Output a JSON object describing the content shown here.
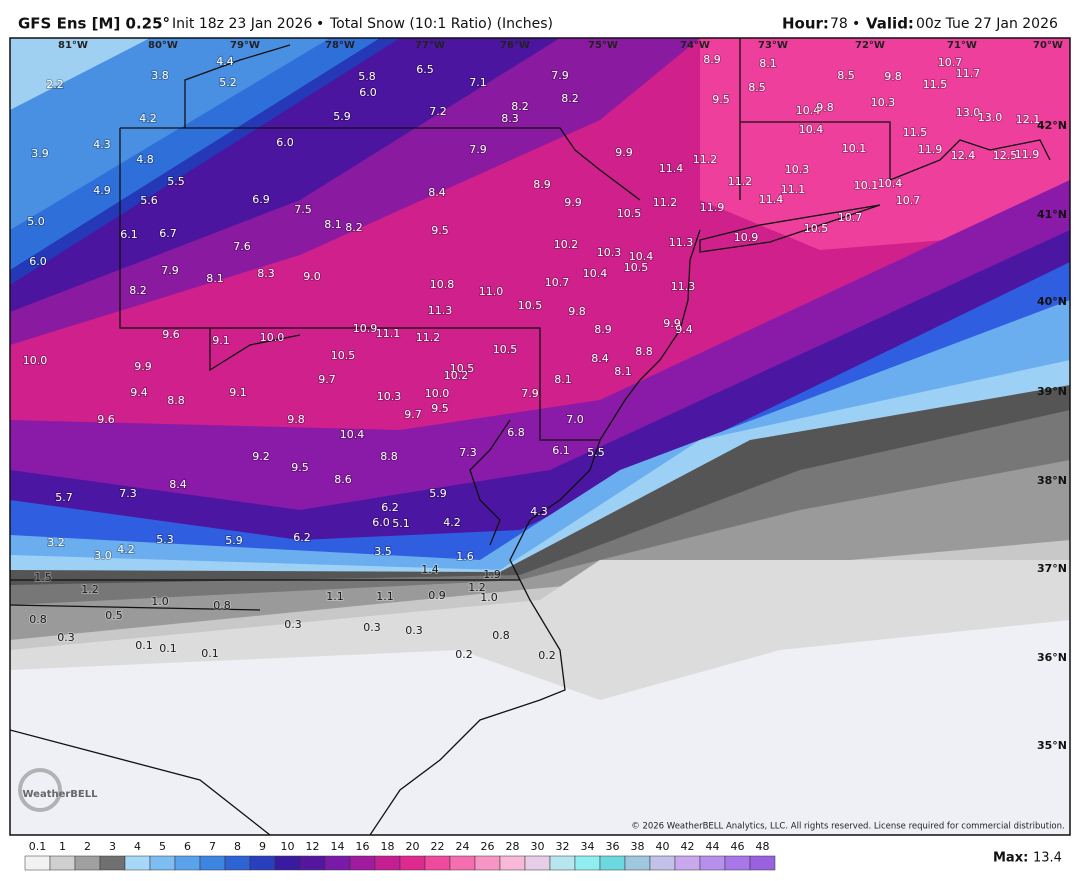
{
  "header": {
    "model": "GFS Ens [M] 0.25°",
    "init": "Init 18z 23 Jan 2026",
    "separator": "•",
    "product": "Total Snow (10:1 Ratio) (Inches)",
    "hour_label": "Hour:",
    "hour": "78",
    "valid_label": "Valid:",
    "valid": "00z Tue 27 Jan 2026"
  },
  "map": {
    "longitudes": [
      "81°W",
      "80°W",
      "79°W",
      "78°W",
      "77°W",
      "76°W",
      "75°W",
      "74°W",
      "73°W",
      "72°W",
      "71°W",
      "70°W"
    ],
    "latitudes": [
      "42°N",
      "41°N",
      "40°N",
      "39°N",
      "38°N",
      "37°N",
      "36°N",
      "35°N"
    ],
    "points": [
      "4.4",
      "5.2",
      "3.8",
      "2.2",
      "5.8",
      "6.0",
      "6.5",
      "7.1",
      "7.9",
      "8.2",
      "8.2",
      "8.3",
      "7.2",
      "5.9",
      "4.2",
      "4.3",
      "3.9",
      "4.8",
      "6.0",
      "8.9",
      "8.1",
      "8.5",
      "9.8",
      "10.7",
      "11.7",
      "8.5",
      "9.5",
      "10.3",
      "11.5",
      "13.0",
      "13.0",
      "12.1",
      "10.4",
      "9.8",
      "10.4",
      "11.5",
      "11.9",
      "12.4",
      "12.5",
      "11.9",
      "10.1",
      "9.9",
      "11.2",
      "11.4",
      "10.3",
      "11.2",
      "7.9",
      "5.5",
      "4.9",
      "5.6",
      "6.9",
      "7.5",
      "8.4",
      "8.9",
      "9.9",
      "10.5",
      "11.2",
      "11.9",
      "11.4",
      "11.1",
      "10.1",
      "10.4",
      "10.7",
      "10.7",
      "10.5",
      "10.9",
      "5.0",
      "6.1",
      "6.7",
      "8.1",
      "8.2",
      "9.5",
      "7.6",
      "10.2",
      "10.3",
      "10.4",
      "10.5",
      "11.3",
      "6.0",
      "7.9",
      "8.1",
      "8.3",
      "9.0",
      "10.4",
      "10.7",
      "10.8",
      "11.0",
      "11.3",
      "8.2",
      "11.3",
      "10.5",
      "9.8",
      "9.9",
      "9.4",
      "8.9",
      "9.6",
      "9.1",
      "10.0",
      "10.9",
      "11.1",
      "11.2",
      "10.5",
      "8.8",
      "8.4",
      "8.1",
      "10.0",
      "9.9",
      "10.5",
      "10.5",
      "10.2",
      "9.7",
      "8.1",
      "9.4",
      "8.8",
      "9.1",
      "10.3",
      "10.0",
      "7.9",
      "9.5",
      "9.7",
      "9.6",
      "9.8",
      "10.4",
      "7.0",
      "6.8",
      "7.3",
      "6.1",
      "5.5",
      "9.2",
      "8.8",
      "9.5",
      "8.6",
      "8.4",
      "7.3",
      "5.7",
      "5.9",
      "6.2",
      "4.3",
      "6.0",
      "5.1",
      "4.2",
      "5.3",
      "5.9",
      "6.2",
      "3.2",
      "4.2",
      "3.0",
      "3.5",
      "1.6",
      "1.5",
      "1.2",
      "1.4",
      "1.9",
      "1.2",
      "1.1",
      "1.1",
      "0.9",
      "1.0",
      "1.0",
      "0.8",
      "0.5",
      "0.8",
      "0.3",
      "0.3",
      "0.3",
      "0.8",
      "0.3",
      "0.1",
      "0.1",
      "0.1",
      "0.2",
      "0.2"
    ],
    "copyright": "© 2026 WeatherBELL Analytics, LLC. All rights reserved. License required for commercial distribution.",
    "logo": "WeatherBELL"
  },
  "legend": {
    "labels": [
      "0.1",
      "1",
      "2",
      "3",
      "4",
      "5",
      "6",
      "7",
      "8",
      "9",
      "10",
      "12",
      "14",
      "16",
      "18",
      "20",
      "22",
      "24",
      "26",
      "28",
      "30",
      "32",
      "34",
      "36",
      "38",
      "40",
      "42",
      "44",
      "46",
      "48"
    ],
    "colors": [
      "#f2f2f2",
      "#cfcfcf",
      "#a0a0a0",
      "#707070",
      "#a8d8f7",
      "#7dbdf2",
      "#5aa3ec",
      "#3c86e2",
      "#2e63d4",
      "#2a3fbd",
      "#3a1aa0",
      "#55169f",
      "#7a1aa8",
      "#a01b9e",
      "#c41f92",
      "#de2a8e",
      "#ef4a9e",
      "#f56fb0",
      "#f795c4",
      "#f8b8d8",
      "#e6cde8",
      "#b8e6ef",
      "#90eef0",
      "#6cd8e0",
      "#9fc7df",
      "#c2c2e8",
      "#c9a8ee",
      "#b790ec",
      "#a877e8",
      "#9960e0"
    ],
    "max_label": "Max:",
    "max_value": "13.4"
  }
}
